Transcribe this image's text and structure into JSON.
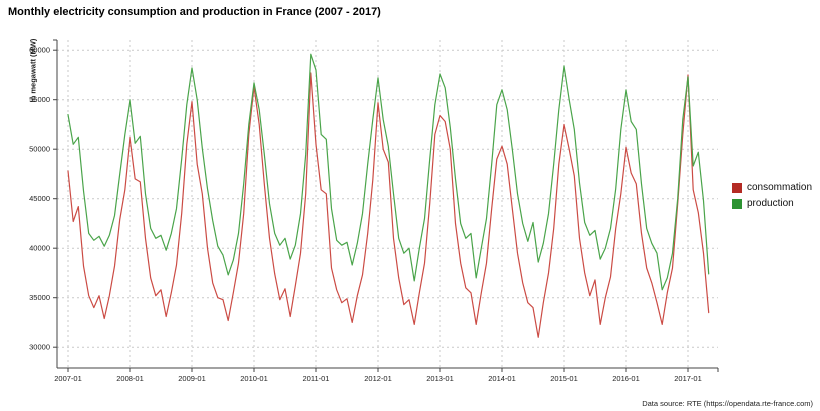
{
  "title": "Monthly electricity consumption and production in France (2007 - 2017)",
  "footer": "Data source: RTE (https://opendata.rte-france.com)",
  "chart_data": {
    "type": "line",
    "title": "Monthly electricity consumption and production in France (2007 - 2017)",
    "ylabel": "In megawatt (MW)",
    "xlabel": "",
    "x_unit": "month",
    "x_start": "2007-01",
    "x_end": "2017-05",
    "x_tick_labels": [
      "2007-01",
      "2008-01",
      "2009-01",
      "2010-01",
      "2011-01",
      "2012-01",
      "2013-01",
      "2014-01",
      "2015-01",
      "2016-01",
      "2017-01"
    ],
    "y_ticks": [
      30000,
      35000,
      40000,
      45000,
      50000,
      55000,
      60000
    ],
    "ylim": [
      27900,
      61000
    ],
    "grid": "dashed-lightgray",
    "legend_position": "right-outside",
    "series": [
      {
        "name": "consommation",
        "legend_color": "#b42b24",
        "line_color": "#cb4b44",
        "values": [
          47800,
          42700,
          44200,
          38200,
          35200,
          34000,
          35200,
          32900,
          35200,
          38200,
          42900,
          45900,
          51200,
          47000,
          46700,
          41000,
          37000,
          35200,
          35800,
          33100,
          35500,
          38300,
          43500,
          50500,
          54800,
          48500,
          45500,
          40000,
          36500,
          35000,
          34800,
          32700,
          35500,
          38500,
          43500,
          51500,
          56300,
          52500,
          46500,
          41000,
          37400,
          34800,
          35900,
          33100,
          36200,
          39500,
          45500,
          57700,
          50500,
          45900,
          45500,
          38000,
          35800,
          34500,
          34900,
          32500,
          35200,
          37300,
          41500,
          46900,
          54700,
          50000,
          48700,
          41000,
          37000,
          34300,
          34800,
          32300,
          35500,
          38500,
          44500,
          51500,
          53400,
          52800,
          50000,
          42500,
          38500,
          36000,
          35500,
          32300,
          35500,
          38500,
          44000,
          49000,
          50300,
          48500,
          44000,
          39500,
          36500,
          34500,
          34000,
          31000,
          34500,
          37500,
          42000,
          48500,
          52500,
          50000,
          47300,
          41000,
          37500,
          35200,
          36800,
          32300,
          35000,
          37100,
          42000,
          45500,
          50200,
          47600,
          46500,
          41500,
          38000,
          36500,
          34500,
          32300,
          35500,
          38000,
          44500,
          51500,
          57500,
          45900,
          43600,
          39500,
          33500
        ]
      },
      {
        "name": "production",
        "legend_color": "#2c9332",
        "line_color": "#4aa44a",
        "values": [
          53500,
          50500,
          51200,
          45800,
          41500,
          40800,
          41200,
          40200,
          41300,
          43300,
          47500,
          51500,
          55000,
          50600,
          51300,
          45500,
          42000,
          41000,
          41300,
          39800,
          41500,
          44000,
          49000,
          54500,
          58200,
          55000,
          50100,
          46000,
          42800,
          40200,
          39300,
          37300,
          38800,
          41500,
          46500,
          52500,
          56700,
          54000,
          49500,
          44500,
          41500,
          40300,
          41000,
          38900,
          40300,
          43500,
          49500,
          59600,
          58000,
          51500,
          51000,
          44000,
          40800,
          40300,
          40600,
          38300,
          40500,
          43500,
          48500,
          53000,
          57200,
          53000,
          50300,
          45500,
          41000,
          39500,
          40000,
          36700,
          40000,
          43000,
          49000,
          54500,
          57600,
          56200,
          52200,
          47000,
          42500,
          41000,
          41500,
          37000,
          40000,
          43000,
          48500,
          54500,
          56000,
          54000,
          50000,
          45500,
          42500,
          40700,
          42600,
          38600,
          40500,
          43500,
          48500,
          54000,
          58400,
          55000,
          52000,
          46600,
          42600,
          41300,
          41800,
          38900,
          40000,
          42000,
          46000,
          52000,
          56000,
          52800,
          52000,
          46500,
          42000,
          40500,
          39500,
          35800,
          37000,
          39500,
          45000,
          53000,
          57300,
          48300,
          49700,
          44800,
          37400
        ]
      }
    ]
  }
}
